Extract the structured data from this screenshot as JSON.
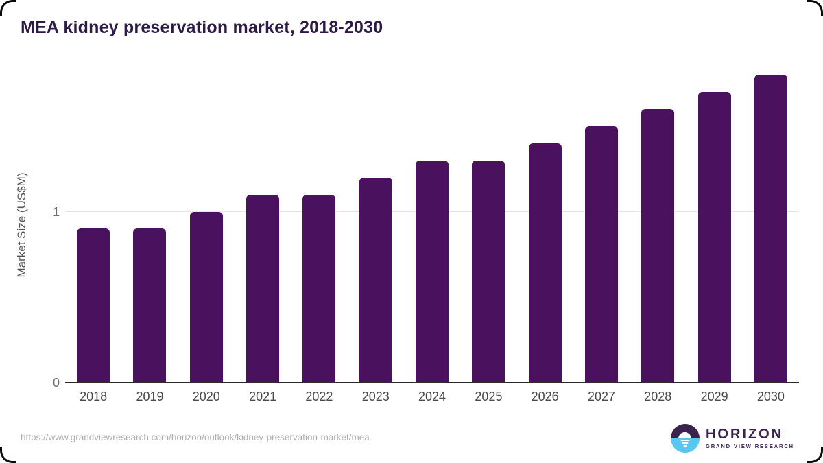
{
  "card": {
    "title": "MEA kidney preservation market, 2018-2030",
    "source_url": "https://www.grandviewresearch.com/horizon/outlook/kidney-preservation-market/mea"
  },
  "chart_data": {
    "type": "bar",
    "title": "MEA kidney preservation market, 2018-2030",
    "categories": [
      "2018",
      "2019",
      "2020",
      "2021",
      "2022",
      "2023",
      "2024",
      "2025",
      "2026",
      "2027",
      "2028",
      "2029",
      "2030"
    ],
    "values": [
      0.9,
      0.9,
      1.0,
      1.1,
      1.1,
      1.2,
      1.3,
      1.3,
      1.4,
      1.5,
      1.6,
      1.7,
      1.8
    ],
    "xlabel": "",
    "ylabel": "Market Size (US$M)",
    "ylim": [
      0,
      1.86
    ],
    "yticks": [
      0,
      1
    ],
    "grid": "horizontal",
    "legend": "none",
    "bar_color": "#4a125e"
  },
  "logo": {
    "name": "HORIZON",
    "subtitle": "GRAND VIEW RESEARCH",
    "circle_icon": "sunset-horizon-icon",
    "purple": "#3b2350",
    "blue": "#58c7f0"
  },
  "colors": {
    "title": "#2e1a47",
    "bar": "#4a125e",
    "axis_line": "#2b2b2b",
    "gridline": "#e7e7e7",
    "tick_text": "#6e6e6e",
    "x_label_text": "#4a4a4a",
    "url_text": "#aeaeae",
    "background": "#ffffff"
  }
}
